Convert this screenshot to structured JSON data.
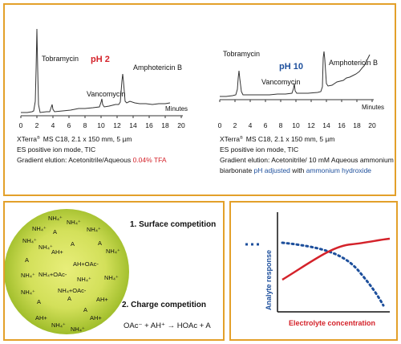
{
  "top": {
    "left_chart": {
      "peak_tobramycin": "Tobramycin",
      "peak_vancomycin": "Vancomycin",
      "peak_amphotericin": "Amphotericin B",
      "ph_label": "pH 2",
      "ph_color": "#d4222a",
      "x_axis_title": "Minutes",
      "ticks": [
        "0",
        "2",
        "4",
        "6",
        "8",
        "10",
        "12",
        "14",
        "16",
        "18",
        "20"
      ],
      "line1_brand": "XTerra",
      "line1_mark": "®",
      "line1_rest": "MS C18, 2.1 x 150 mm, 5 µm",
      "line2": "ES positive ion mode, TIC",
      "line3_prefix": "Gradient elution: Acetonitrile/Aqueous ",
      "line3_highlight": "0.04% TFA"
    },
    "right_chart": {
      "peak_tobramycin": "Tobramycin",
      "peak_vancomycin": "Vancomycin",
      "peak_amphotericin": "Amphotericin B",
      "ph_label": "pH 10",
      "ph_color": "#1d4f9c",
      "x_axis_title": "Minutes",
      "ticks": [
        "0",
        "2",
        "4",
        "6",
        "8",
        "10",
        "12",
        "14",
        "16",
        "18",
        "20"
      ],
      "line1_brand": "XTerra",
      "line1_mark": "®",
      "line1_rest": "MS C18, 2.1 x 150 mm, 5 µm",
      "line2": "ES positive ion mode, TIC",
      "line3": "Gradient elution: Acetonitrile/ 10 mM Aqueous ammonium",
      "line4_prefix": "biarbonate ",
      "line4_highlight1": "pH adjusted",
      "line4_middle": " with ",
      "line4_highlight2": "ammonium hydroxide",
      "highlight_color": "#1d4f9c"
    }
  },
  "droplet": {
    "labels": [
      "NH₄⁺",
      "NH₄⁺",
      "NH₄⁺",
      "NH₄⁺",
      "NH₄⁺",
      "A",
      "A",
      "A",
      "NH₄⁺",
      "AH+",
      "NH₄⁺",
      "A",
      "AH+OAc-",
      "NH₄⁺",
      "NH₄⁺",
      "NH₄+OAc-",
      "NH₄⁺",
      "NH₄+OAc-",
      "NH₄⁺",
      "A",
      "AH+",
      "A",
      "AH+",
      "AH+",
      "NH₄⁺",
      "NH₄⁺",
      "A"
    ],
    "point1": "1. Surface competition",
    "point2": "2. Charge competition",
    "equation": "OAc⁻ + AH⁺ → HOAc + A",
    "colors": {
      "outer": "#9fbd2a",
      "inner": "#e8ee7a"
    }
  },
  "response_plot": {
    "ylabel": "Analyte response",
    "xlabel": "Electrolyte concentration",
    "red_color": "#d4222a",
    "blue_color": "#1d4f9c"
  }
}
